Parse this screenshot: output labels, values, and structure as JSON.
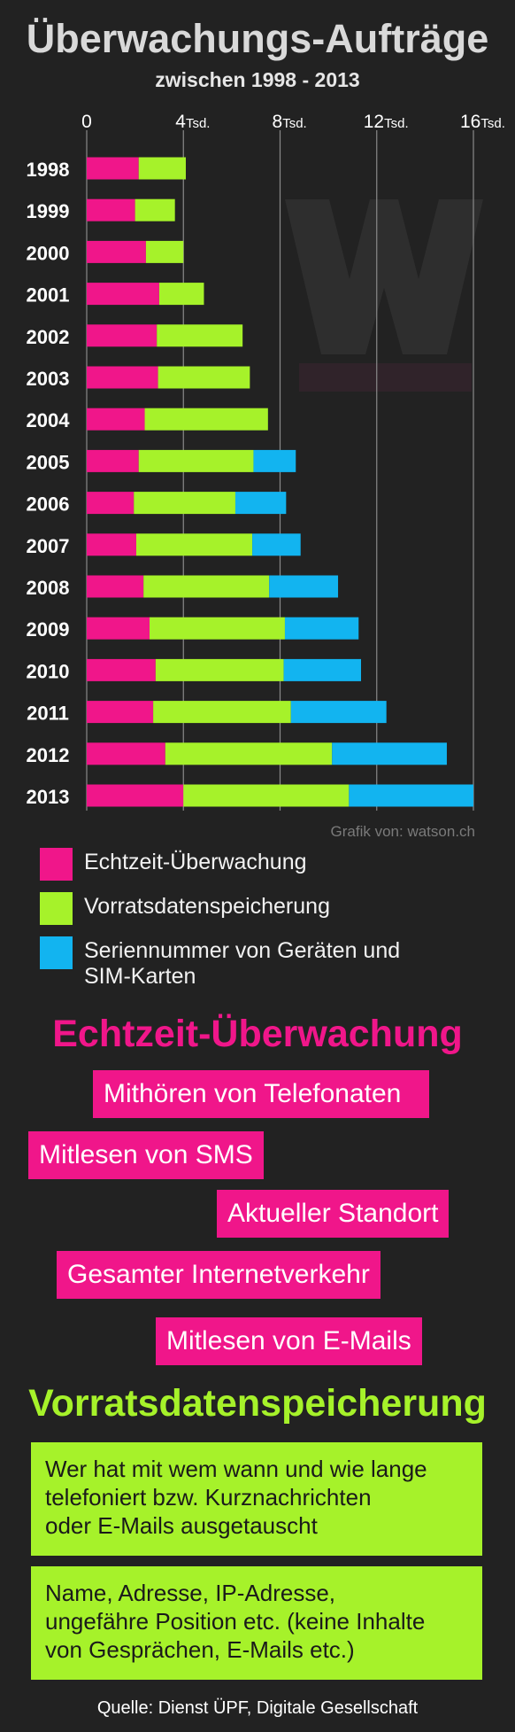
{
  "header": {
    "title": "Überwachungs-Aufträge",
    "subtitle": "zwischen 1998 - 2013"
  },
  "chart_data": {
    "type": "bar",
    "orientation": "horizontal",
    "stacked": true,
    "title": "Überwachungs-Aufträge",
    "subtitle": "zwischen 1998 - 2013",
    "xlim": [
      0,
      16000
    ],
    "x_ticks": [
      {
        "value": 0,
        "num": "0",
        "unit": ""
      },
      {
        "value": 4000,
        "num": "4",
        "unit": "Tsd."
      },
      {
        "value": 8000,
        "num": "8",
        "unit": "Tsd."
      },
      {
        "value": 12000,
        "num": "12",
        "unit": "Tsd."
      },
      {
        "value": 16000,
        "num": "16",
        "unit": "Tsd."
      }
    ],
    "categories": [
      "1998",
      "1999",
      "2000",
      "2001",
      "2002",
      "2003",
      "2004",
      "2005",
      "2006",
      "2007",
      "2008",
      "2009",
      "2010",
      "2011",
      "2012",
      "2013"
    ],
    "series": [
      {
        "name": "Echtzeit-Überwachung",
        "color": "#f0168a",
        "values": [
          2150,
          2000,
          2450,
          3000,
          2900,
          2950,
          2400,
          2150,
          1950,
          2050,
          2350,
          2600,
          2850,
          2750,
          3250,
          4000
        ]
      },
      {
        "name": "Vorratsdatenspeicherung",
        "color": "#a6f22a",
        "values": [
          1950,
          1650,
          1550,
          1850,
          3550,
          3800,
          5100,
          4750,
          4200,
          4800,
          5200,
          5600,
          5300,
          5700,
          6900,
          6850
        ]
      },
      {
        "name": "Seriennummer von Geräten und SIM-Karten",
        "color": "#12b4f0",
        "values": [
          0,
          0,
          0,
          0,
          0,
          0,
          0,
          1750,
          2100,
          2000,
          2850,
          3050,
          3200,
          3950,
          4750,
          5150
        ]
      }
    ],
    "grid": true,
    "legend_position": "bottom"
  },
  "credit": "Grafik von: watson.ch",
  "legend_items": [
    {
      "label": "Echtzeit-Überwachung",
      "color": "#f0168a"
    },
    {
      "label": "Vorratsdatenspeicherung",
      "color": "#a6f22a"
    },
    {
      "label": "Seriennummer von Geräten und\nSIM-Karten",
      "color": "#12b4f0"
    }
  ],
  "realtime": {
    "heading": "Echtzeit-Überwachung",
    "items": [
      "Mithören von Telefonaten",
      "Mitlesen von SMS",
      "Aktueller Standort",
      "Gesamter Internetverkehr",
      "Mitlesen von E-Mails"
    ]
  },
  "retention": {
    "heading": "Vorratsdatenspeicherung",
    "items": [
      "Wer hat mit wem wann und wie lange\ntelefoniert bzw. Kurznachrichten\noder E-Mails ausgetauscht",
      "Name, Adresse, IP-Adresse,\nungefähre Position etc. (keine Inhalte\nvon Gesprächen, E-Mails etc.)"
    ]
  },
  "source": "Quelle: Dienst ÜPF, Digitale Gesellschaft",
  "colors": {
    "background": "#222222",
    "magenta": "#f0168a",
    "green": "#a6f22a",
    "blue": "#12b4f0"
  }
}
